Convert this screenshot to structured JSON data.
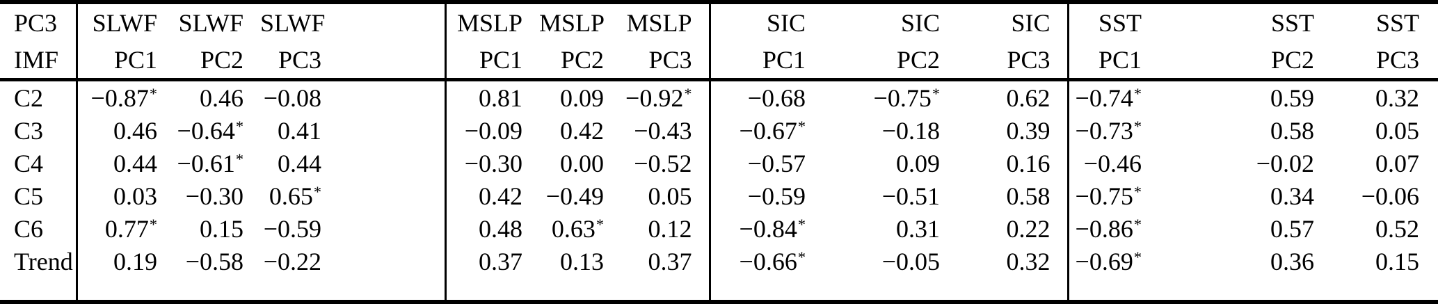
{
  "table": {
    "header_top": [
      "PC3",
      "SLWF",
      "SLWF",
      "SLWF",
      "MSLP",
      "MSLP",
      "MSLP",
      "SIC",
      "SIC",
      "SIC",
      "SST",
      "SST",
      "SST"
    ],
    "header_bottom": [
      "IMF",
      "PC1",
      "PC2",
      "PC3",
      "PC1",
      "PC2",
      "PC3",
      "PC1",
      "PC2",
      "PC3",
      "PC1",
      "PC2",
      "PC3"
    ],
    "rows": [
      {
        "label": "C2",
        "values": [
          "−0.87*",
          "0.46",
          "−0.08",
          "0.81",
          "0.09",
          "−0.92*",
          "−0.68",
          "−0.75*",
          "0.62",
          "−0.74*",
          "0.59",
          "0.32"
        ]
      },
      {
        "label": "C3",
        "values": [
          "0.46",
          "−0.64*",
          "0.41",
          "−0.09",
          "0.42",
          "−0.43",
          "−0.67*",
          "−0.18",
          "0.39",
          "−0.73*",
          "0.58",
          "0.05"
        ]
      },
      {
        "label": "C4",
        "values": [
          "0.44",
          "−0.61*",
          "0.44",
          "−0.30",
          "0.00",
          "−0.52",
          "−0.57",
          "0.09",
          "0.16",
          "−0.46",
          "−0.02",
          "0.07"
        ]
      },
      {
        "label": "C5",
        "values": [
          "0.03",
          "−0.30",
          "0.65*",
          "0.42",
          "−0.49",
          "0.05",
          "−0.59",
          "−0.51",
          "0.58",
          "−0.75*",
          "0.34",
          "−0.06"
        ]
      },
      {
        "label": "C6",
        "values": [
          "0.77*",
          "0.15",
          "−0.59",
          "0.48",
          "0.63*",
          "0.12",
          "−0.84*",
          "0.31",
          "0.22",
          "−0.86*",
          "0.57",
          "0.52"
        ]
      },
      {
        "label": "Trend",
        "values": [
          "0.19",
          "−0.58",
          "−0.22",
          "0.37",
          "0.13",
          "0.37",
          "−0.66*",
          "−0.05",
          "0.32",
          "−0.69*",
          "0.36",
          "0.15"
        ]
      }
    ],
    "significance_marker": "*"
  },
  "colors": {
    "text": "#000000",
    "background": "#ffffff",
    "rule": "#000000"
  }
}
